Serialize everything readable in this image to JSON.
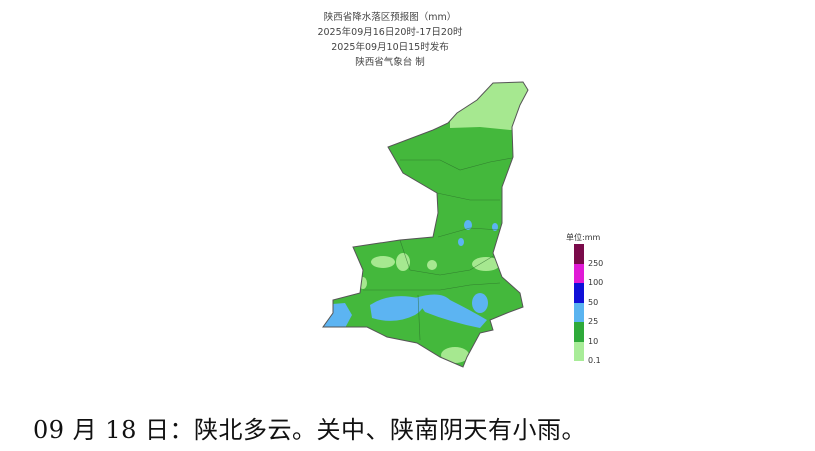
{
  "title": {
    "line1": "陕西省降水落区预报图（mm）",
    "line2": "2025年09月16日20时-17日20时",
    "line3": "2025年09月10日15时发布",
    "line4": "陕西省气象台 制"
  },
  "legend": {
    "title": "单位:mm",
    "colors": [
      "#7a0a4a",
      "#e01ad6",
      "#1010d8",
      "#5ab4f0",
      "#2eaa3a",
      "#3ec048",
      "#a8ec98"
    ],
    "labels": [
      "250",
      "100",
      "50",
      "25",
      "10",
      "0.1"
    ]
  },
  "map_colors": {
    "moderate": "#44b83c",
    "light": "#a6e890",
    "heavy": "#5cb4f2"
  },
  "caption": "09 月 18 日：陕北多云。关中、陕南阴天有小雨。"
}
